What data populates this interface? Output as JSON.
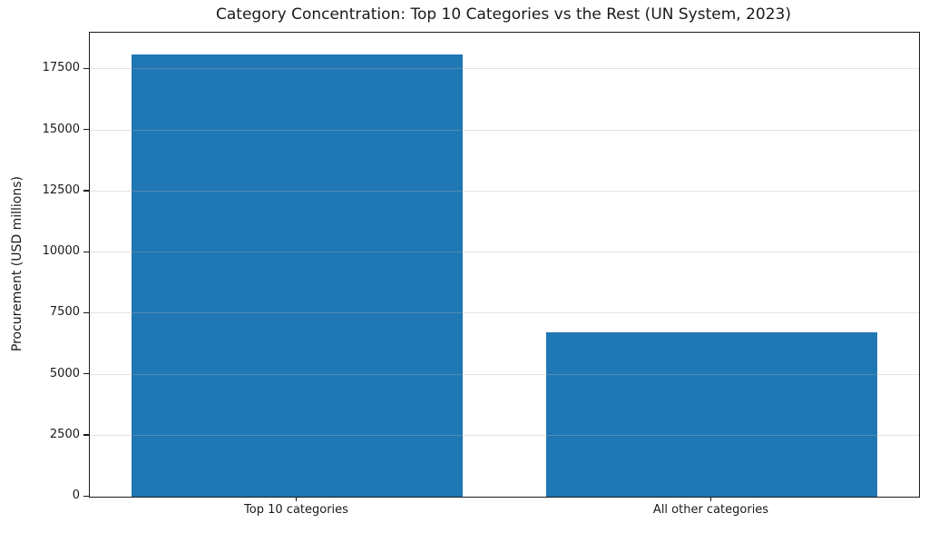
{
  "figure": {
    "background": "#ffffff",
    "colors": {
      "bar": "#1f77b4",
      "grid": "rgba(176,176,176,0.35)",
      "spine": "#1a1a1a",
      "text": "#1a1a1a"
    }
  },
  "chart_data": {
    "type": "bar",
    "title": "Category Concentration: Top 10 Categories vs the Rest (UN System, 2023)",
    "categories": [
      "Top 10 categories",
      "All other categories"
    ],
    "values": [
      18100,
      6730
    ],
    "xlabel": "",
    "ylabel": "Procurement (USD millions)",
    "ylim": [
      0,
      19005
    ],
    "yticks": [
      0,
      2500,
      5000,
      7500,
      10000,
      12500,
      15000,
      17500
    ],
    "bar_color": "#1f77b4",
    "bar_width_fraction": 0.8,
    "grid": "y-only",
    "grid_above_bars": true,
    "legend": "none"
  }
}
